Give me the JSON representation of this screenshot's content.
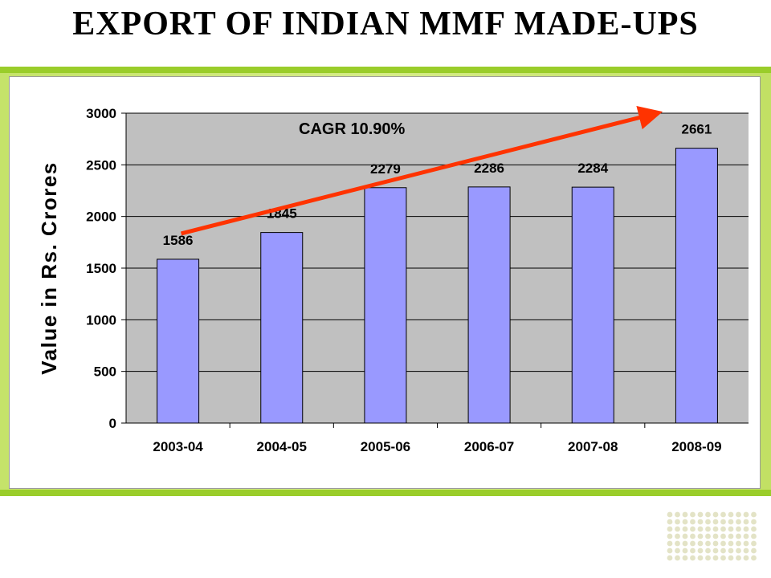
{
  "slide": {
    "title": "EXPORT OF INDIAN MMF MADE-UPS"
  },
  "colors": {
    "accent": "#9acd2a",
    "bar": "#9999ff",
    "plot_bg": "#c0c0c0",
    "arrow": "#ff3300"
  },
  "chart_data": {
    "type": "bar",
    "title": "",
    "xlabel": "",
    "ylabel": "Value in Rs. Crores",
    "categories": [
      "2003-04",
      "2004-05",
      "2005-06",
      "2006-07",
      "2007-08",
      "2008-09"
    ],
    "values": [
      1586,
      1845,
      2279,
      2286,
      2284,
      2661
    ],
    "ylim": [
      0,
      3000
    ],
    "yticks": [
      0,
      500,
      1000,
      1500,
      2000,
      2500,
      3000
    ],
    "grid": true,
    "legend": "none",
    "annotations": [
      {
        "text": "CAGR 10.90%",
        "type": "trend-arrow",
        "from_category": "2003-04",
        "to_category": "2008-09"
      }
    ]
  }
}
